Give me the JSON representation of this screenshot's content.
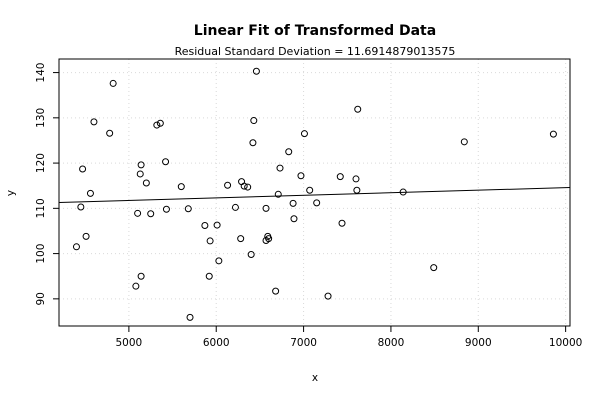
{
  "chart_data": {
    "type": "scatter",
    "title": "Linear Fit of Transformed Data",
    "subtitle": "Residual Standard Deviation =  11.6914879013575",
    "xlabel": "x",
    "ylabel": "y",
    "xlim": [
      4200,
      10050
    ],
    "ylim": [
      84,
      143
    ],
    "xticks": [
      5000,
      6000,
      7000,
      8000,
      9000,
      10000
    ],
    "yticks": [
      90,
      100,
      110,
      120,
      130,
      140
    ],
    "grid": true,
    "fit_line": {
      "x": [
        4200,
        10050
      ],
      "y": [
        111.3,
        114.6
      ]
    },
    "points": [
      {
        "x": 4400,
        "y": 101.5
      },
      {
        "x": 4450,
        "y": 110.3
      },
      {
        "x": 4470,
        "y": 118.7
      },
      {
        "x": 4510,
        "y": 103.8
      },
      {
        "x": 4560,
        "y": 113.3
      },
      {
        "x": 4600,
        "y": 129.1
      },
      {
        "x": 4780,
        "y": 126.6
      },
      {
        "x": 4820,
        "y": 137.6
      },
      {
        "x": 5080,
        "y": 92.8
      },
      {
        "x": 5100,
        "y": 108.9
      },
      {
        "x": 5130,
        "y": 117.6
      },
      {
        "x": 5140,
        "y": 119.6
      },
      {
        "x": 5140,
        "y": 95.0
      },
      {
        "x": 5200,
        "y": 115.6
      },
      {
        "x": 5250,
        "y": 108.8
      },
      {
        "x": 5320,
        "y": 128.4
      },
      {
        "x": 5360,
        "y": 128.8
      },
      {
        "x": 5420,
        "y": 120.3
      },
      {
        "x": 5430,
        "y": 109.8
      },
      {
        "x": 5600,
        "y": 114.8
      },
      {
        "x": 5680,
        "y": 109.9
      },
      {
        "x": 5700,
        "y": 85.9
      },
      {
        "x": 5870,
        "y": 106.2
      },
      {
        "x": 5920,
        "y": 95.0
      },
      {
        "x": 5930,
        "y": 102.8
      },
      {
        "x": 6010,
        "y": 106.3
      },
      {
        "x": 6030,
        "y": 98.4
      },
      {
        "x": 6130,
        "y": 115.1
      },
      {
        "x": 6220,
        "y": 110.2
      },
      {
        "x": 6280,
        "y": 103.3
      },
      {
        "x": 6290,
        "y": 115.9
      },
      {
        "x": 6320,
        "y": 114.9
      },
      {
        "x": 6360,
        "y": 114.7
      },
      {
        "x": 6400,
        "y": 99.8
      },
      {
        "x": 6420,
        "y": 124.5
      },
      {
        "x": 6430,
        "y": 129.4
      },
      {
        "x": 6460,
        "y": 140.3
      },
      {
        "x": 6570,
        "y": 110.0
      },
      {
        "x": 6570,
        "y": 102.9
      },
      {
        "x": 6590,
        "y": 103.8
      },
      {
        "x": 6600,
        "y": 103.3
      },
      {
        "x": 6680,
        "y": 91.7
      },
      {
        "x": 6710,
        "y": 113.1
      },
      {
        "x": 6730,
        "y": 118.9
      },
      {
        "x": 6830,
        "y": 122.5
      },
      {
        "x": 6880,
        "y": 111.1
      },
      {
        "x": 6890,
        "y": 107.7
      },
      {
        "x": 6970,
        "y": 117.2
      },
      {
        "x": 7010,
        "y": 126.5
      },
      {
        "x": 7070,
        "y": 114.0
      },
      {
        "x": 7150,
        "y": 111.2
      },
      {
        "x": 7280,
        "y": 90.6
      },
      {
        "x": 7420,
        "y": 117.0
      },
      {
        "x": 7440,
        "y": 106.7
      },
      {
        "x": 7600,
        "y": 116.5
      },
      {
        "x": 7610,
        "y": 114.0
      },
      {
        "x": 7620,
        "y": 131.9
      },
      {
        "x": 8140,
        "y": 113.6
      },
      {
        "x": 8490,
        "y": 96.9
      },
      {
        "x": 8840,
        "y": 124.7
      },
      {
        "x": 9860,
        "y": 126.4
      }
    ]
  }
}
